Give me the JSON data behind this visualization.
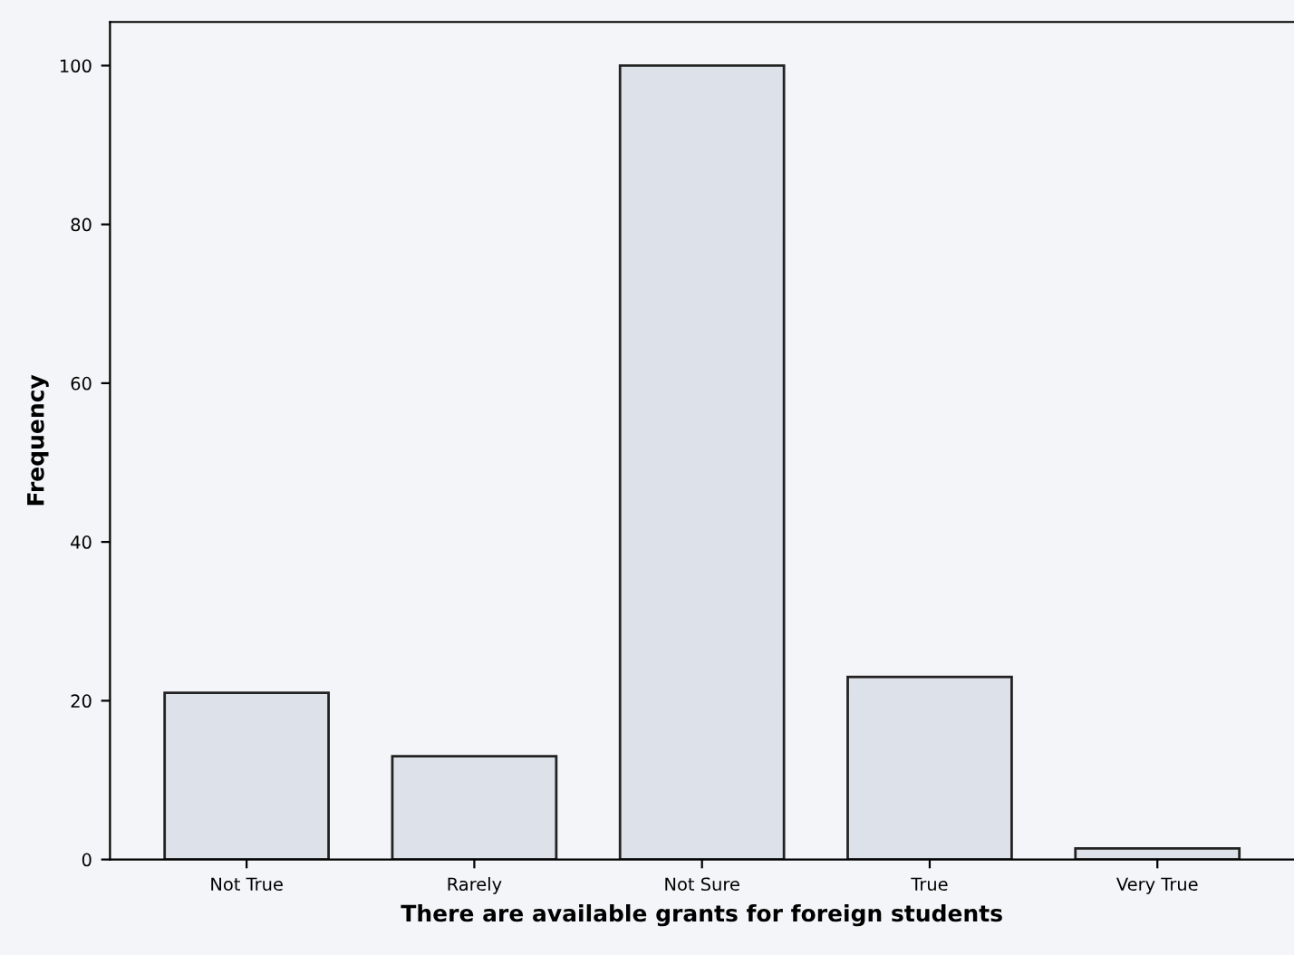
{
  "chart_data": {
    "type": "bar",
    "xlabel": "There are available grants for foreign students",
    "ylabel": "Frequency",
    "categories": [
      "Not True",
      "Rarely",
      "Not Sure",
      "True",
      "Very True"
    ],
    "values": [
      21,
      13,
      100,
      23,
      1.4
    ],
    "color": "#dde1ea",
    "ylim": [
      0,
      105.5
    ],
    "yticks": [
      0,
      20,
      40,
      60,
      80,
      100
    ],
    "grid": false,
    "legend": false
  }
}
